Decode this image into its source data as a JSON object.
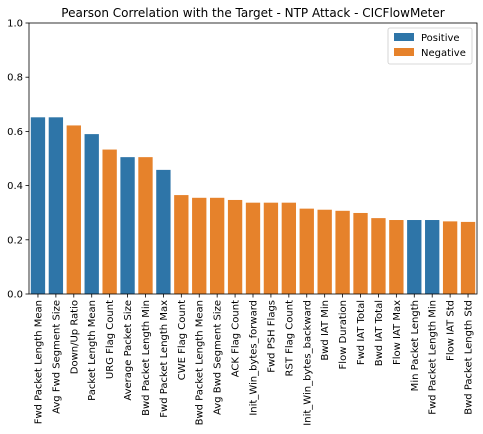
{
  "chart_data": {
    "type": "bar",
    "title": "Pearson Correlation with the Target - NTP Attack - CICFlowMeter",
    "xlabel": "",
    "ylabel": "",
    "ylim": [
      0,
      1.0
    ],
    "yticks": [
      "0.0",
      "0.2",
      "0.4",
      "0.6",
      "0.8",
      "1.0"
    ],
    "grid": false,
    "legend": {
      "placement": "top-right",
      "entries": [
        {
          "name": "Positive",
          "color": "#2e75a8"
        },
        {
          "name": "Negative",
          "color": "#e6822b"
        }
      ]
    },
    "categories": [
      "Fwd Packet Length Mean",
      "Avg Fwd Segment Size",
      "Down/Up Ratio",
      "Packet Length Mean",
      "URG Flag Count",
      "Average Packet Size",
      "Bwd Packet Length Min",
      "Fwd Packet Length Max",
      "CWE Flag Count",
      "Bwd Packet Length Mean",
      "Avg Bwd Segment Size",
      "ACK Flag Count",
      "Init_Win_bytes_forward",
      "Fwd PSH Flags",
      "RST Flag Count",
      "Init_Win_bytes_backward",
      "Bwd IAT Min",
      "Flow Duration",
      "Fwd IAT Total",
      "Bwd IAT Total",
      "Flow IAT Max",
      "Min Packet Length",
      "Fwd Packet Length Min",
      "Flow IAT Std",
      "Bwd Packet Length Std"
    ],
    "values": [
      0.652,
      0.652,
      0.622,
      0.59,
      0.533,
      0.505,
      0.505,
      0.458,
      0.365,
      0.355,
      0.355,
      0.347,
      0.337,
      0.337,
      0.337,
      0.315,
      0.311,
      0.307,
      0.299,
      0.28,
      0.273,
      0.273,
      0.273,
      0.268,
      0.266
    ],
    "sign": [
      "Positive",
      "Positive",
      "Negative",
      "Positive",
      "Negative",
      "Positive",
      "Negative",
      "Positive",
      "Negative",
      "Negative",
      "Negative",
      "Negative",
      "Negative",
      "Negative",
      "Negative",
      "Negative",
      "Negative",
      "Negative",
      "Negative",
      "Negative",
      "Negative",
      "Positive",
      "Positive",
      "Negative",
      "Negative"
    ]
  }
}
